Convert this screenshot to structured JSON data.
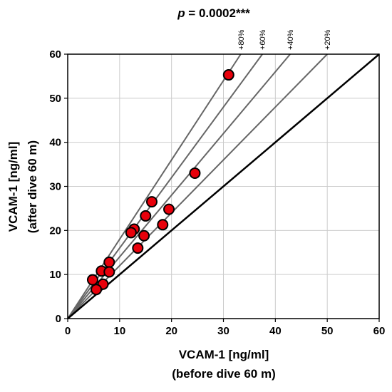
{
  "chart_data": {
    "type": "scatter",
    "title": "p = 0.0002***",
    "title_italic_part": "p",
    "title_rest": " = 0.0002***",
    "xlabel": "VCAM-1 [ng/ml]",
    "xlabel_line2": "(before dive 60 m)",
    "ylabel": "VCAM-1 [ng/ml]",
    "ylabel_line2": "(after dive 60 m)",
    "xlim": [
      0,
      60
    ],
    "ylim": [
      0,
      60
    ],
    "xticks": [
      0,
      10,
      20,
      30,
      40,
      50,
      60
    ],
    "yticks": [
      0,
      10,
      20,
      30,
      40,
      50,
      60
    ],
    "grid": true,
    "identity_line": {
      "slope": 1.0,
      "color": "#000000"
    },
    "reference_lines": [
      {
        "label": "+80%",
        "slope": 1.8
      },
      {
        "label": "+60%",
        "slope": 1.6
      },
      {
        "label": "+40%",
        "slope": 1.4
      },
      {
        "label": "+20%",
        "slope": 1.2
      }
    ],
    "reference_line_color": "#666666",
    "marker_color": "#e8000b",
    "marker_edge_color": "#000000",
    "points": [
      {
        "x": 31,
        "y": 55.3
      },
      {
        "x": 24.5,
        "y": 33
      },
      {
        "x": 16.2,
        "y": 26.5
      },
      {
        "x": 19.5,
        "y": 24.8
      },
      {
        "x": 15,
        "y": 23.3
      },
      {
        "x": 18.3,
        "y": 21.3
      },
      {
        "x": 12.8,
        "y": 20.3
      },
      {
        "x": 12.2,
        "y": 19.5
      },
      {
        "x": 14.7,
        "y": 18.8
      },
      {
        "x": 13.5,
        "y": 16
      },
      {
        "x": 8,
        "y": 12.8
      },
      {
        "x": 6.5,
        "y": 10.8
      },
      {
        "x": 8,
        "y": 10.6
      },
      {
        "x": 4.8,
        "y": 8.8
      },
      {
        "x": 6.8,
        "y": 7.8
      },
      {
        "x": 5.5,
        "y": 6.6
      }
    ]
  }
}
